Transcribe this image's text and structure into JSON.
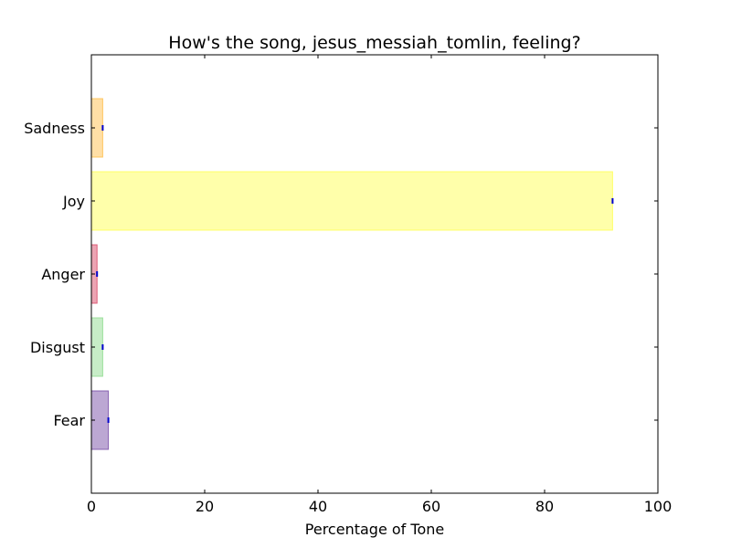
{
  "chart_data": {
    "type": "bar",
    "orientation": "horizontal",
    "title": "How's the song, jesus_messiah_tomlin, feeling?",
    "xlabel": "Percentage of Tone",
    "ylabel": "",
    "xlim": [
      0,
      100
    ],
    "xticks": [
      "0",
      "20",
      "40",
      "60",
      "80",
      "100"
    ],
    "grid": false,
    "categories": [
      "Fear",
      "Disgust",
      "Anger",
      "Joy",
      "Sadness"
    ],
    "values": [
      3,
      2,
      1,
      92,
      2
    ],
    "colors": [
      "#7a4fa8",
      "#8fdc8f",
      "#d94a68",
      "#ffff55",
      "#ffc04d"
    ],
    "bar_opacity": 0.5,
    "marker_color": "#0000cc"
  }
}
